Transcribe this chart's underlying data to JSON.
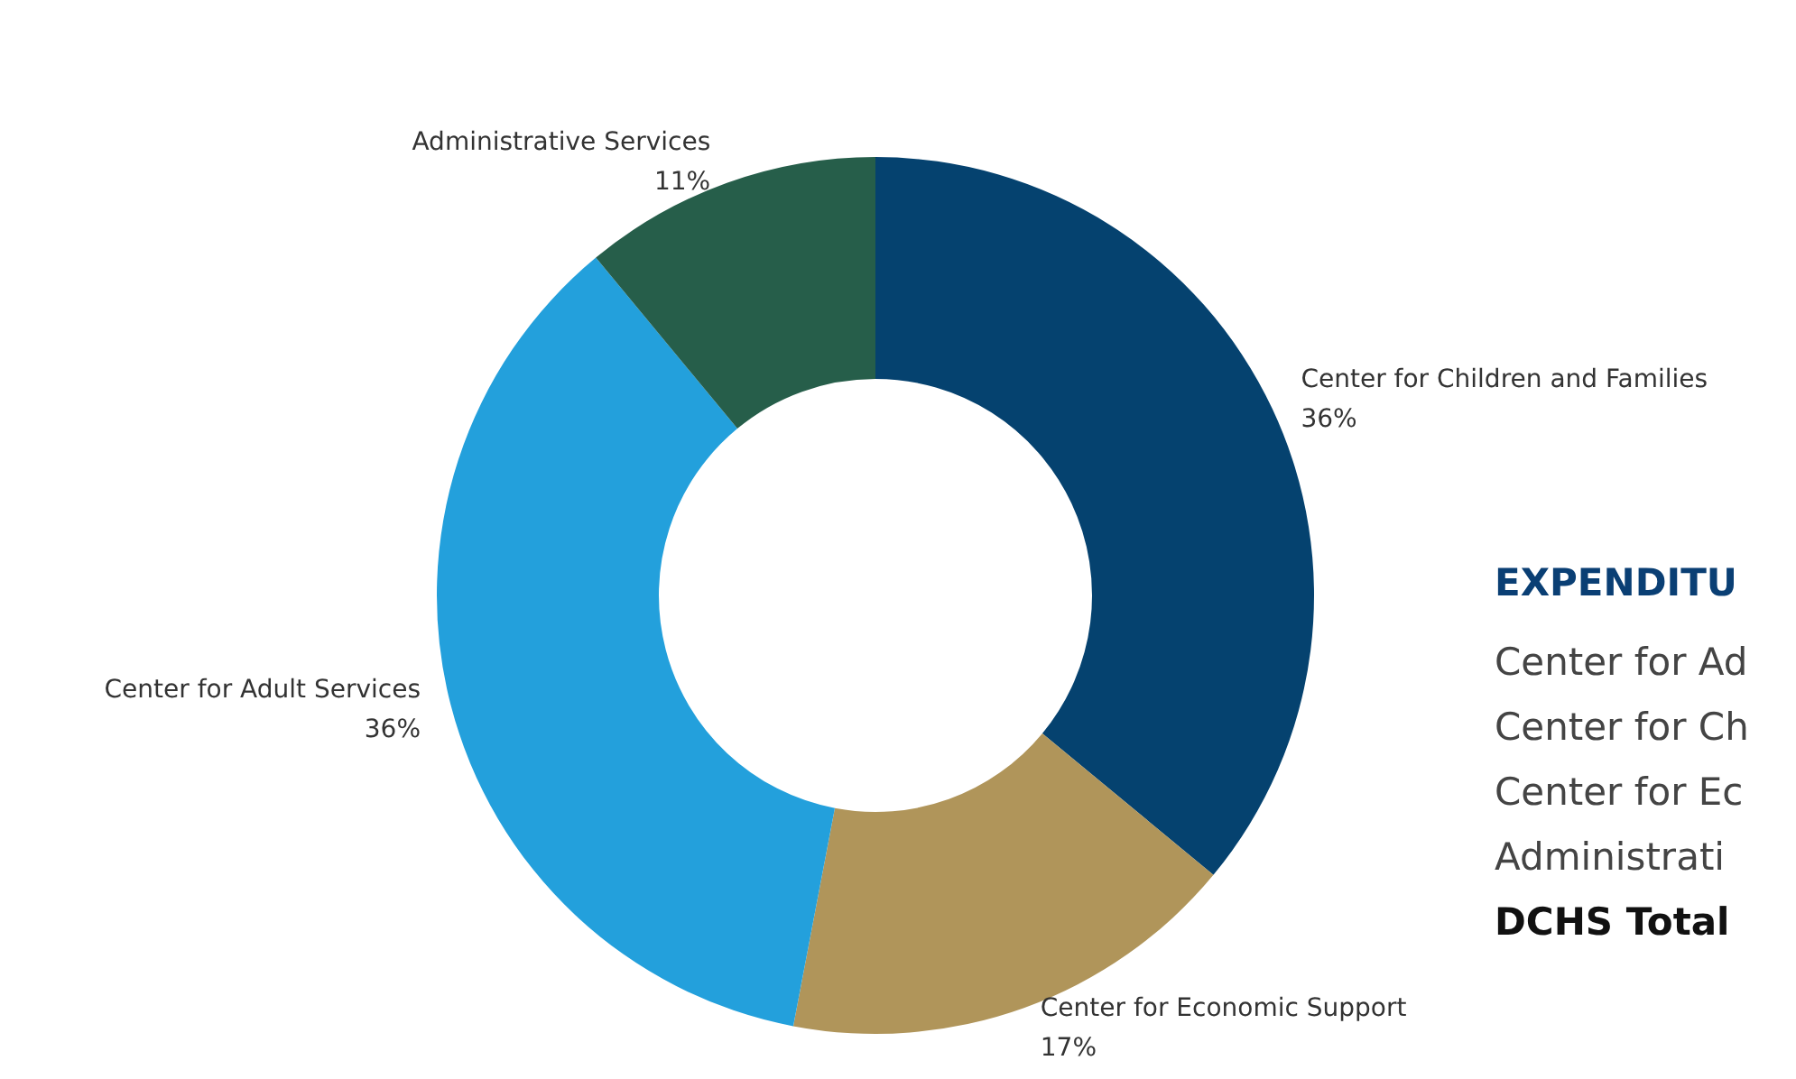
{
  "chart_data": {
    "type": "donut",
    "categories": [
      "Center for Children and Families",
      "Center for Economic Support",
      "Center for Adult Services",
      "Administrative Services"
    ],
    "values": [
      36,
      17,
      36,
      11
    ],
    "colors": [
      "#05426f",
      "#b0955a",
      "#23a0dc",
      "#265e4a"
    ],
    "value_labels": [
      "36%",
      "17%",
      "36%",
      "11%"
    ],
    "annotations": [
      "EXPENDITU",
      "Center for Ad",
      "Center for Ch",
      "Center for Ec",
      "Administrati",
      "DCHS Total"
    ]
  }
}
